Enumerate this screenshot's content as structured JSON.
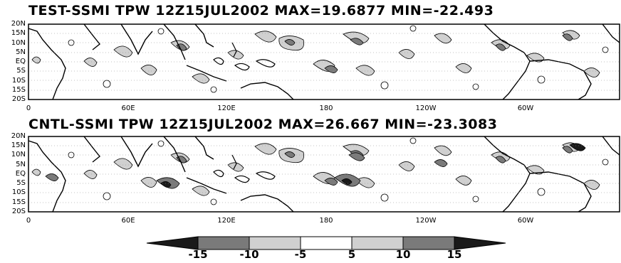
{
  "panels": [
    {
      "title": "TEST-SSMI TPW 12Z15JUL2002 MAX=19.6877 MIN=-22.493",
      "lat_labels": [
        "20N",
        "15N",
        "10N",
        "5N",
        "EQ",
        "5S",
        "10S",
        "15S",
        "20S"
      ],
      "lon_labels": [
        "0",
        "60E",
        "120E",
        "180",
        "120W",
        "60W"
      ]
    },
    {
      "title": "CNTL-SSMI TPW 12Z15JUL2002 MAX=26.667 MIN=-23.3083",
      "lat_labels": [
        "20N",
        "15N",
        "10N",
        "5N",
        "EQ",
        "5S",
        "10S",
        "15S",
        "20S"
      ],
      "lon_labels": [
        "0",
        "60E",
        "120E",
        "180",
        "120W",
        "60W"
      ]
    }
  ],
  "colorbar": {
    "labels": [
      "-15",
      "-10",
      "-5",
      "5",
      "10",
      "15"
    ],
    "fill_colors": [
      "#1a1a1a",
      "#7a7a7a",
      "#d0d0d0",
      "#ffffff",
      "#d0d0d0",
      "#7a7a7a",
      "#1a1a1a"
    ]
  }
}
